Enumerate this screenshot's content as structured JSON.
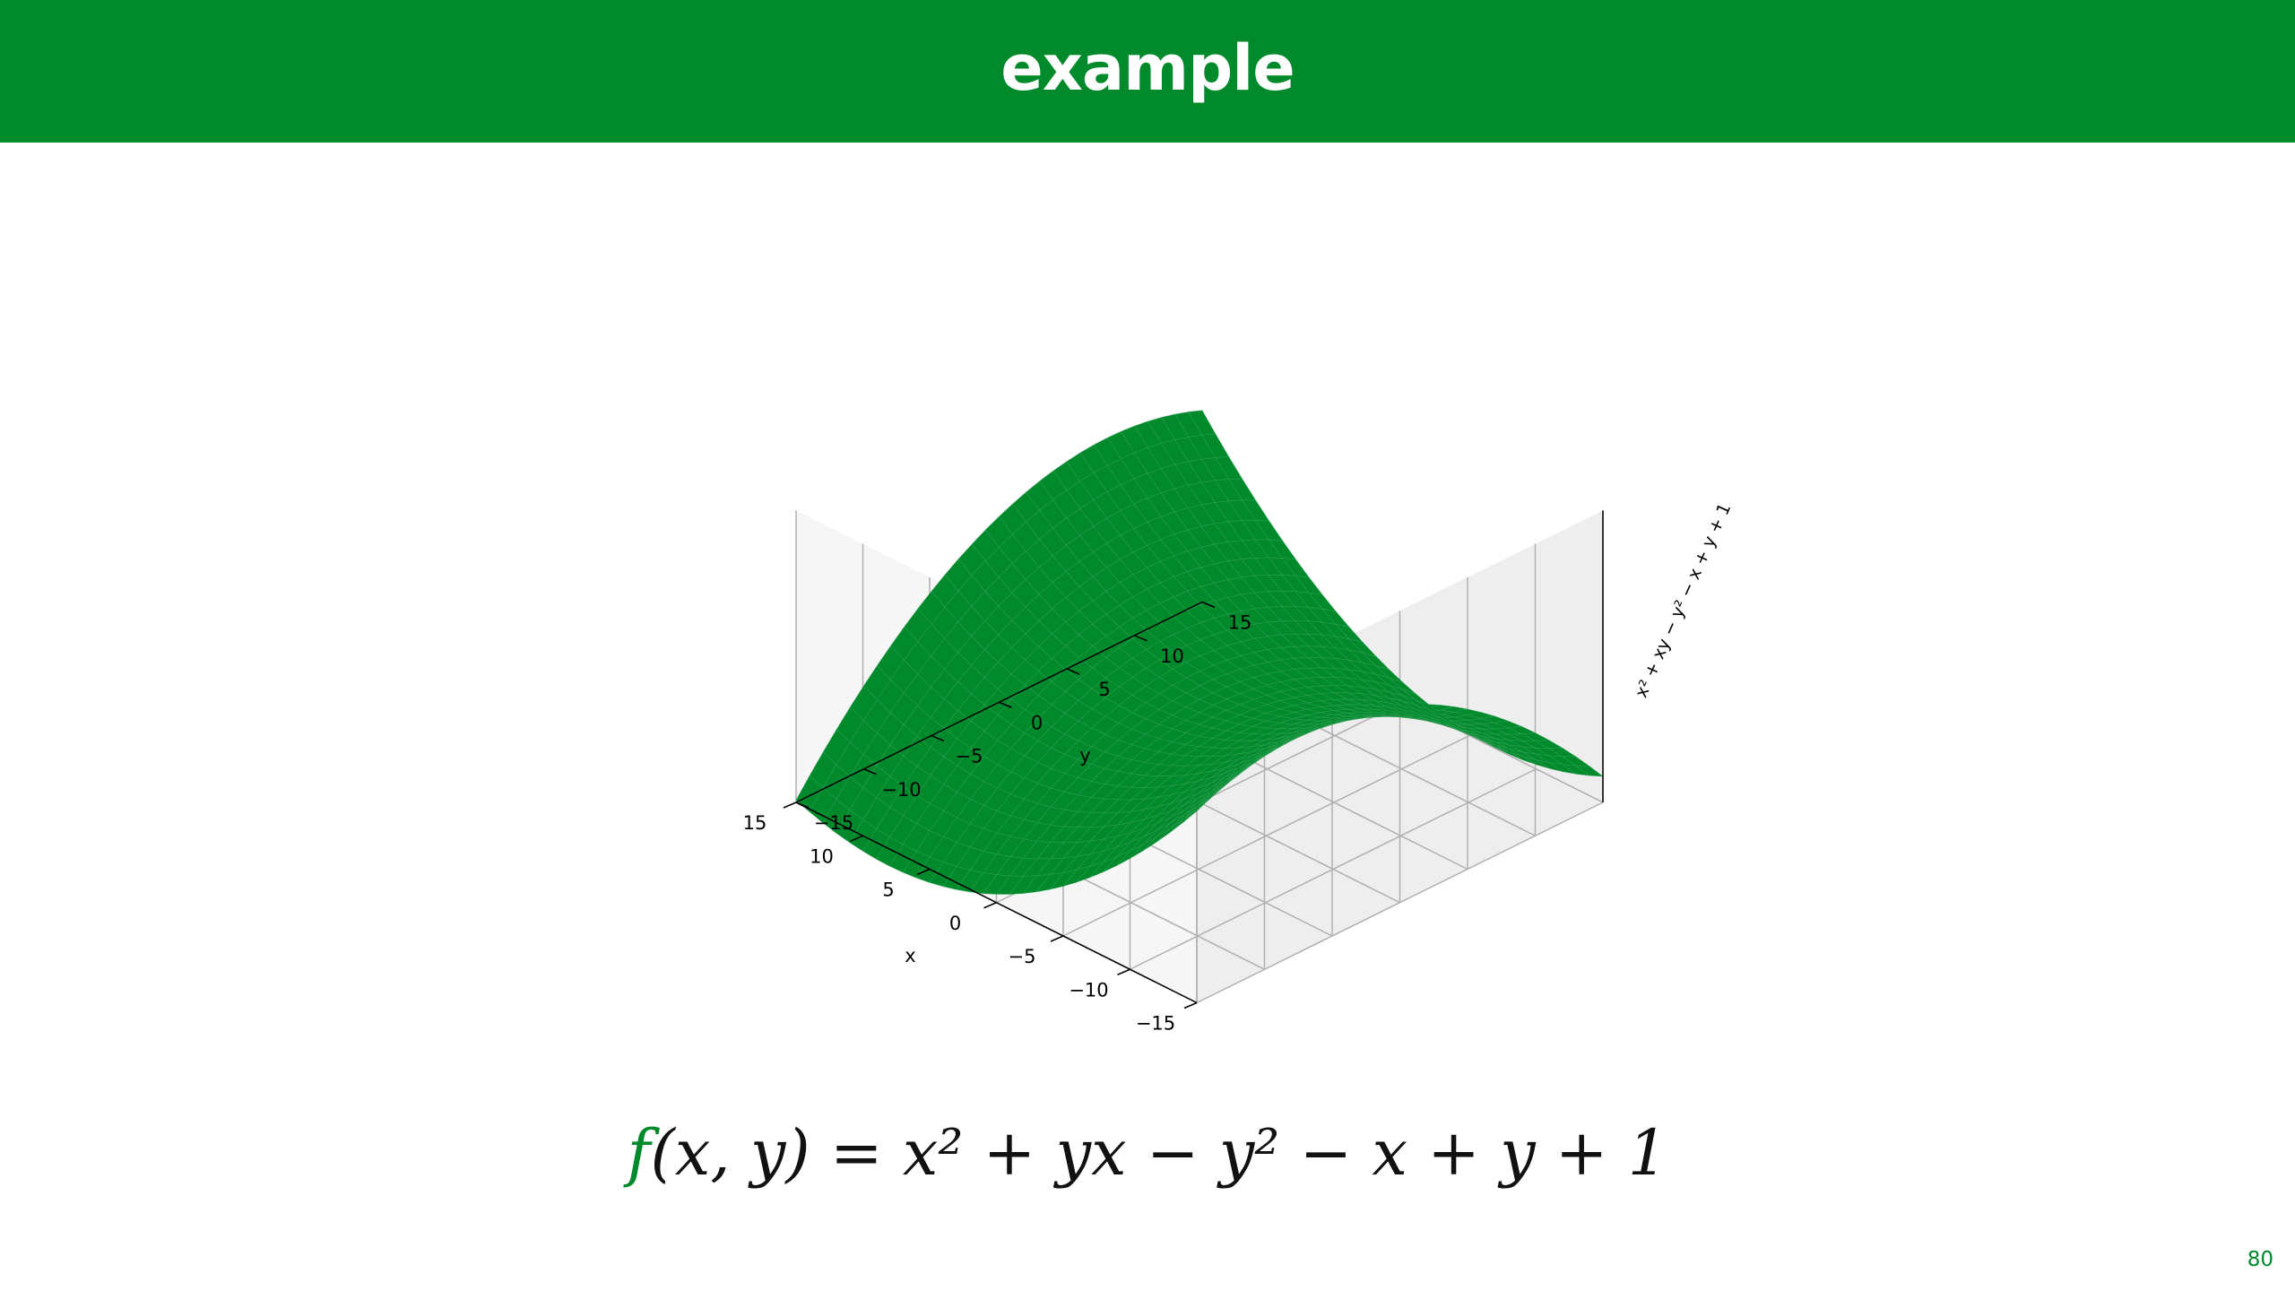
{
  "slide": {
    "title": "example",
    "page_number": "80",
    "formula_prefix": "f",
    "formula_body": "(x, y) = x² + yx − y² − x + y + 1",
    "accent_color": "#008a2c"
  },
  "chart_data": {
    "type": "surface",
    "function": "x^2 + x*y - y^2 - x + y + 1",
    "xlabel": "x",
    "ylabel": "y",
    "zlabel": "x² + xy − y² − x + y + 1",
    "xlim": [
      -15,
      15
    ],
    "ylim": [
      -15,
      15
    ],
    "zlim": [
      -260,
      480
    ],
    "x_ticks": [
      "−15",
      "−10",
      "−5",
      "0",
      "5",
      "10",
      "15"
    ],
    "y_ticks": [
      "−15",
      "−10",
      "−5",
      "0",
      "5",
      "10",
      "15"
    ],
    "grid_resolution": 31,
    "surface_color": "#008a2c",
    "grid": true,
    "view": "top-down oblique, panes at back"
  }
}
